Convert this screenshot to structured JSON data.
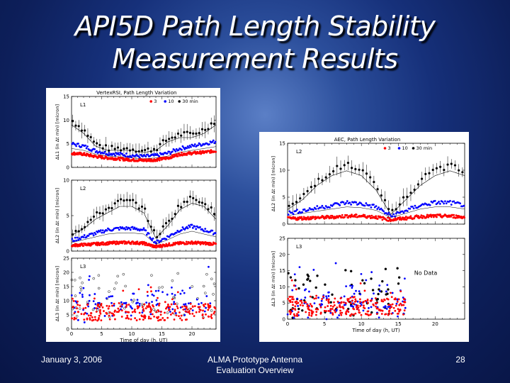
{
  "slide": {
    "title_line1": "API5D Path Length Stability",
    "title_line2": "Measurement Results",
    "footer_date": "January 3, 2006",
    "footer_center_line1": "ALMA Prototype Antenna",
    "footer_center_line2": "Evaluation Overview",
    "page_number": "28"
  },
  "colors": {
    "s3": "#ff0000",
    "s10": "#0000ff",
    "s30": "#000000"
  },
  "chart_data": [
    {
      "type": "scatter",
      "title": "VertexRSI, Path Length Variation",
      "legend": [
        "3",
        "10",
        "30 min"
      ],
      "legend_placement": "top-right",
      "xlabel": "Time of day (h, UT)",
      "xlim": [
        0,
        24
      ],
      "x_ticks": [
        "0",
        "5",
        "10",
        "15",
        "20"
      ],
      "panels": [
        {
          "label": "L1",
          "ylabel": "ΔL1 (in Δt min) [micron]",
          "ylim": [
            0,
            15
          ],
          "y_ticks": [
            "0",
            "5",
            "10",
            "15"
          ]
        },
        {
          "label": "L2",
          "ylabel": "ΔL2 (in Δt min) [micron]",
          "ylim": [
            0,
            10
          ],
          "y_ticks": [
            "0",
            "5",
            "10"
          ]
        },
        {
          "label": "L3",
          "ylabel": "ΔL3 (in Δt min) [micron]",
          "ylim": [
            0,
            25
          ],
          "y_ticks": [
            "0",
            "5",
            "10",
            "15",
            "20",
            "25"
          ]
        }
      ],
      "series_trends": {
        "L1": {
          "t": [
            0,
            2,
            4,
            6,
            8,
            10,
            12,
            14,
            16,
            18,
            20,
            22,
            24
          ],
          "s30": [
            10,
            8,
            5,
            4,
            4,
            4,
            3.5,
            4,
            6,
            7,
            7,
            8,
            10
          ],
          "s10": [
            5,
            4.5,
            3.5,
            3,
            2.8,
            2.5,
            2.3,
            2.5,
            3,
            4,
            4.5,
            5,
            5.5
          ],
          "s3": [
            3,
            2.8,
            2.3,
            2,
            1.8,
            1.6,
            1.5,
            1.6,
            2,
            2.8,
            3,
            3.2,
            3.5
          ]
        },
        "L2": {
          "t": [
            0,
            2,
            4,
            6,
            8,
            10,
            12,
            14,
            16,
            18,
            20,
            22,
            24
          ],
          "s30": [
            2.5,
            3.5,
            5,
            6,
            7,
            7,
            6,
            2,
            4,
            6.5,
            7.5,
            7,
            5
          ],
          "s10": [
            1.5,
            2,
            2.5,
            3,
            3.2,
            3.2,
            3,
            1.2,
            2,
            3,
            3.5,
            3,
            2.5
          ],
          "s3": [
            0.8,
            0.9,
            1,
            1.1,
            1.2,
            1.2,
            1.1,
            0.6,
            0.9,
            1.1,
            1.2,
            1.1,
            1
          ]
        },
        "L3": {
          "t": [
            0,
            24
          ],
          "s30_mean": 12,
          "s10_mean": 9,
          "s3_mean": 6
        }
      }
    },
    {
      "type": "scatter",
      "title": "AEC, Path Length Variation",
      "legend": [
        "3",
        "10",
        "30 min"
      ],
      "legend_placement": "top-right",
      "xlabel": "Time of day (h, UT)",
      "xlim": [
        0,
        24
      ],
      "x_ticks": [
        "0",
        "5",
        "10",
        "15",
        "20"
      ],
      "panels": [
        {
          "label": "L2",
          "ylabel": "ΔL2 (in Δt min) [micron]",
          "ylim": [
            0,
            15
          ],
          "y_ticks": [
            "0",
            "5",
            "10",
            "15"
          ]
        },
        {
          "label": "L3",
          "ylabel": "ΔL3 (in Δt min) [micron]",
          "ylim": [
            0,
            25
          ],
          "y_ticks": [
            "0",
            "5",
            "10",
            "15",
            "20",
            "25"
          ],
          "annotation": "No Data"
        }
      ],
      "series_trends": {
        "L2": {
          "t": [
            0,
            2,
            4,
            6,
            8,
            10,
            12,
            14,
            16,
            18,
            20,
            22,
            24
          ],
          "s30": [
            3,
            5,
            8,
            10,
            11,
            10,
            7,
            2,
            5,
            8,
            10,
            11,
            10
          ],
          "s10": [
            2,
            2.5,
            3,
            3.5,
            4,
            3.8,
            3.2,
            1.5,
            2.5,
            3.5,
            4,
            4,
            3.5
          ],
          "s3": [
            1,
            1.1,
            1.2,
            1.3,
            1.5,
            1.5,
            1.3,
            0.8,
            1.1,
            1.4,
            1.5,
            1.5,
            1.3
          ]
        },
        "L3": {
          "t": [
            0,
            16
          ],
          "s30_mean": 8,
          "s10_mean": 5,
          "s3_mean": 4
        }
      }
    }
  ]
}
